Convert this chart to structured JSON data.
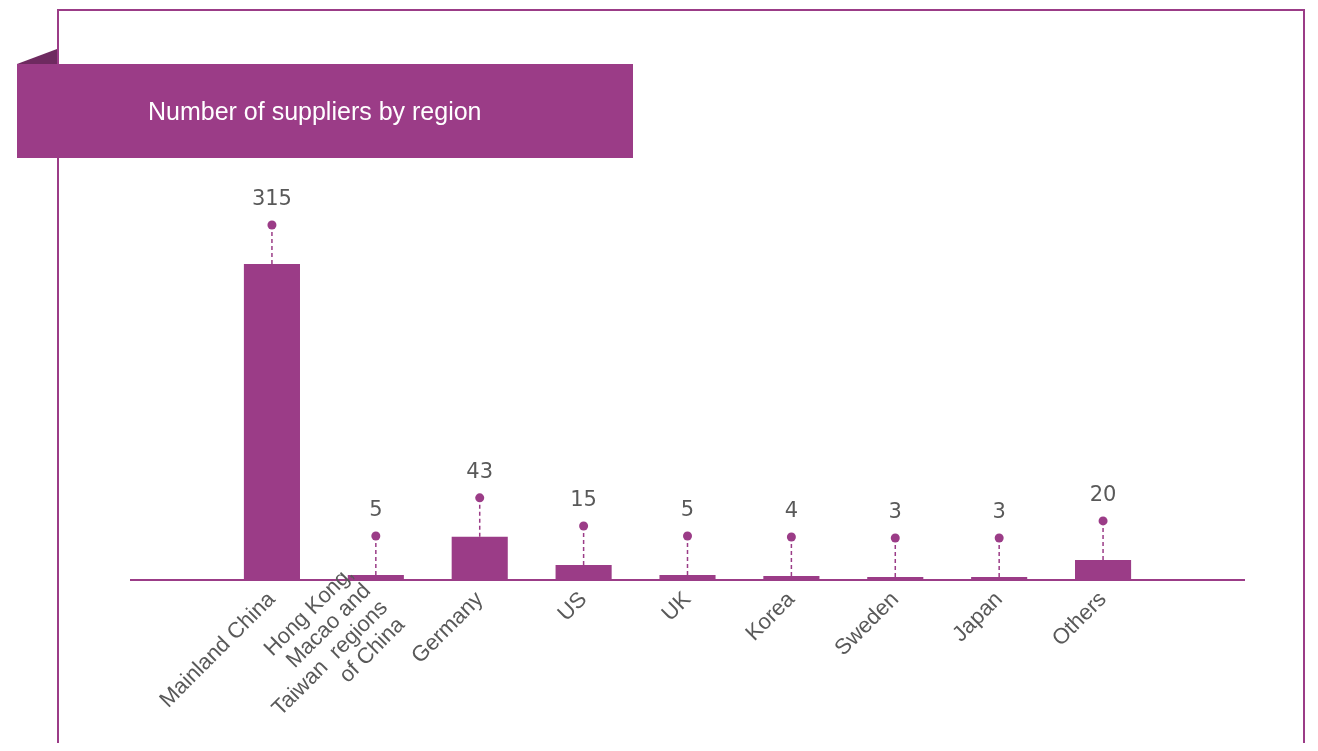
{
  "chart_data": {
    "type": "bar",
    "title": "Number of suppliers by region",
    "categories": [
      "Mainland China",
      "Hong Kong, Macao and Taiwan  regions of China",
      "Germany",
      "US",
      "UK",
      "Korea",
      "Sweden",
      "Japan",
      "Others"
    ],
    "values": [
      315,
      5,
      43,
      15,
      5,
      4,
      3,
      3,
      20
    ],
    "color": "#9b3c87",
    "data_labels": true
  }
}
